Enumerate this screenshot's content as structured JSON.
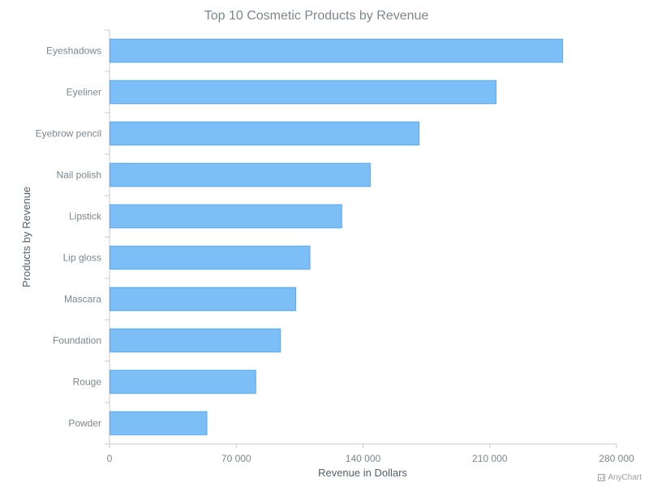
{
  "chart_data": {
    "type": "bar",
    "orientation": "horizontal",
    "title": "Top 10 Cosmetic Products by Revenue",
    "xlabel": "Revenue in Dollars",
    "ylabel": "Products by Revenue",
    "categories": [
      "Eyeshadows",
      "Eyeliner",
      "Eyebrow pencil",
      "Nail polish",
      "Lipstick",
      "Lip gloss",
      "Mascara",
      "Foundation",
      "Rouge",
      "Powder"
    ],
    "values": [
      249980,
      213210,
      170670,
      143760,
      128000,
      110430,
      102610,
      94190,
      80540,
      53540
    ],
    "xlim": [
      0,
      280000
    ],
    "xticks": [
      0,
      70000,
      140000,
      210000,
      280000
    ],
    "xtick_labels": [
      "0",
      "70 000",
      "140 000",
      "210 000",
      "280 000"
    ],
    "grid": false,
    "legend": "none",
    "colors": {
      "bar_fill": "#7bbff6",
      "bar_stroke": "#5aa8ec",
      "title": "#7c868e",
      "axis_label": "#545f69",
      "tick_label": "#7c868e",
      "axis_line": "#c8c8c8"
    }
  },
  "credit": {
    "label": "AnyChart",
    "icon": "anychart-logo-icon"
  }
}
